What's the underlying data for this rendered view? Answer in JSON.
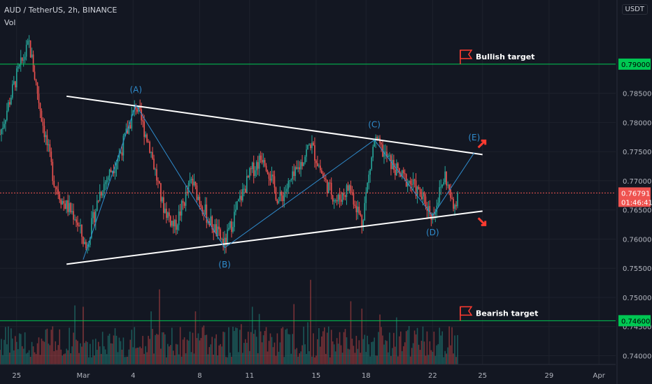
{
  "header": {
    "symbol_line": "AUD / TetherUS, 2h, BINANCE",
    "volume_label": "Vol"
  },
  "currency_button": "USDT",
  "colors": {
    "bg": "#131722",
    "up": "#26a69a",
    "down": "#ef5350",
    "grid": "#1e222d",
    "axis_text": "#b2b5be",
    "target_line": "#00c853",
    "trendline": "#ffffff",
    "wave": "#2f8bcc",
    "arrow": "#ff3b30",
    "price_tag": "#ef5350"
  },
  "chart_data": {
    "type": "candlestick",
    "y_axis": {
      "ticks": [
        "0.78500",
        "0.78000",
        "0.77500",
        "0.77000",
        "0.76500",
        "0.76000",
        "0.75500",
        "0.75000",
        "0.74500",
        "0.74000"
      ],
      "tick_values": [
        0.785,
        0.78,
        0.775,
        0.77,
        0.765,
        0.76,
        0.755,
        0.75,
        0.745,
        0.74
      ],
      "range": [
        0.7385,
        0.801
      ],
      "unit_label": "USDT"
    },
    "x_axis": {
      "ticks": [
        "25",
        "Mar",
        "4",
        "8",
        "11",
        "15",
        "18",
        "22",
        "25",
        "29",
        "Apr"
      ],
      "tick_values": [
        "2021-02-25",
        "2021-03-01",
        "2021-03-04",
        "2021-03-08",
        "2021-03-11",
        "2021-03-15",
        "2021-03-18",
        "2021-03-22",
        "2021-03-25",
        "2021-03-29",
        "2021-04-01"
      ]
    },
    "price_path": [
      [
        "2021-02-24 00:00",
        0.778
      ],
      [
        "2021-02-25 00:00",
        0.788
      ],
      [
        "2021-02-25 18:00",
        0.7935
      ],
      [
        "2021-02-26 12:00",
        0.781
      ],
      [
        "2021-02-27 06:00",
        0.77
      ],
      [
        "2021-02-27 18:00",
        0.7665
      ],
      [
        "2021-02-28 12:00",
        0.764
      ],
      [
        "2021-03-01 04:00",
        0.7585
      ],
      [
        "2021-03-02 00:00",
        0.768
      ],
      [
        "2021-03-03 06:00",
        0.775
      ],
      [
        "2021-03-04 04:00",
        0.783
      ],
      [
        "2021-03-05 00:00",
        0.776
      ],
      [
        "2021-03-05 18:00",
        0.766
      ],
      [
        "2021-03-06 12:00",
        0.762
      ],
      [
        "2021-03-07 12:00",
        0.77
      ],
      [
        "2021-03-08 12:00",
        0.7635
      ],
      [
        "2021-03-09 12:00",
        0.759
      ],
      [
        "2021-03-10 06:00",
        0.7655
      ],
      [
        "2021-03-11 02:00",
        0.7715
      ],
      [
        "2021-03-11 20:00",
        0.7745
      ],
      [
        "2021-03-12 18:00",
        0.7665
      ],
      [
        "2021-03-13 18:00",
        0.771
      ],
      [
        "2021-03-14 16:00",
        0.7765
      ],
      [
        "2021-03-15 12:00",
        0.77
      ],
      [
        "2021-03-16 06:00",
        0.7665
      ],
      [
        "2021-03-17 00:00",
        0.769
      ],
      [
        "2021-03-17 18:00",
        0.763
      ],
      [
        "2021-03-18 12:00",
        0.777
      ],
      [
        "2021-03-19 06:00",
        0.774
      ],
      [
        "2021-03-20 00:00",
        0.771
      ],
      [
        "2021-03-20 18:00",
        0.7695
      ],
      [
        "2021-03-21 12:00",
        0.7665
      ],
      [
        "2021-03-22 00:00",
        0.764
      ],
      [
        "2021-03-22 18:00",
        0.771
      ],
      [
        "2021-03-23 06:00",
        0.765
      ],
      [
        "2021-03-23 12:00",
        0.7679
      ]
    ],
    "last_price": {
      "value": 0.76791,
      "label": "0.76791",
      "countdown": "01:46:41"
    },
    "levels": [
      {
        "name": "bullish_target",
        "value": 0.79,
        "label": "0.79000",
        "text": "Bullish target"
      },
      {
        "name": "bearish_target",
        "value": 0.746,
        "label": "0.74600",
        "text": "Bearish target"
      }
    ],
    "trendlines": [
      {
        "name": "upper",
        "from": [
          "2021-02-28 00:00",
          0.7845
        ],
        "to": [
          "2021-03-25 00:00",
          0.7745
        ]
      },
      {
        "name": "lower",
        "from": [
          "2021-02-28 00:00",
          0.7557
        ],
        "to": [
          "2021-03-25 00:00",
          0.7648
        ]
      }
    ],
    "waves": [
      {
        "label": "(A)",
        "x": "2021-03-04 04:00",
        "y": 0.783
      },
      {
        "label": "(B)",
        "x": "2021-03-09 12:00",
        "y": 0.7585
      },
      {
        "label": "(C)",
        "x": "2021-03-18 12:00",
        "y": 0.777
      },
      {
        "label": "(D)",
        "x": "2021-03-22 00:00",
        "y": 0.764
      },
      {
        "label": "(E)",
        "x": "2021-03-24 12:00",
        "y": 0.7748
      }
    ],
    "wave_start": {
      "x": "2021-03-01 00:00",
      "y": 0.7565
    }
  }
}
